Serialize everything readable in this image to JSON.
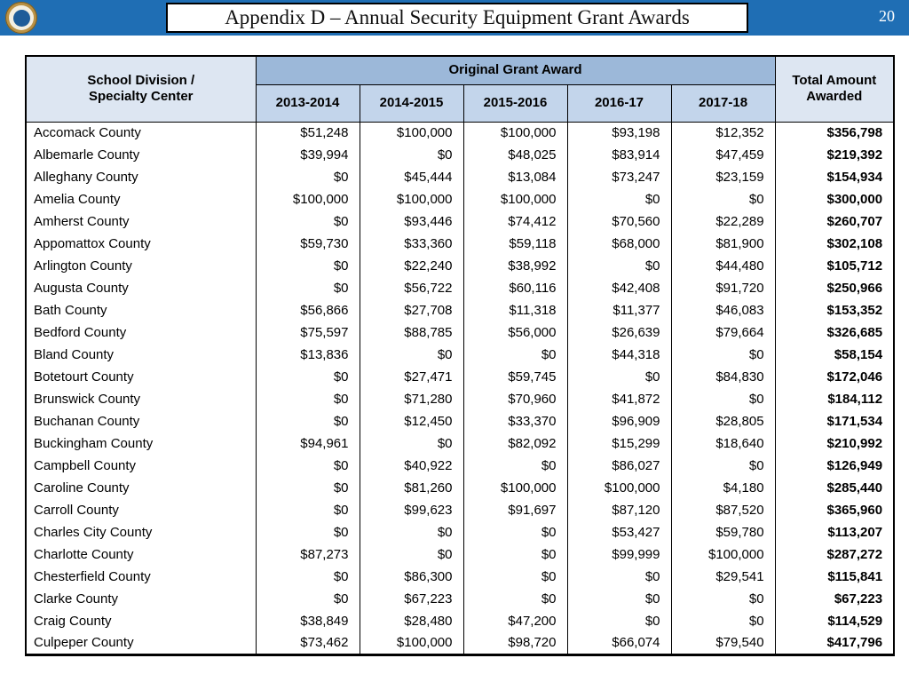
{
  "header": {
    "title": "Appendix D – Annual Security Equipment Grant Awards",
    "page_number": "20",
    "bar_color": "#1F6EB4",
    "logo": "doe-circular-seal"
  },
  "table": {
    "header": {
      "division": "School Division /\nSpecialty Center",
      "group": "Original Grant Award",
      "years": [
        "2013-2014",
        "2014-2015",
        "2015-2016",
        "2016-17",
        "2017-18"
      ],
      "total": "Total Amount\nAwarded"
    },
    "colors": {
      "group_header_bg": "#9CB8D9",
      "year_header_bg": "#C3D5EB",
      "side_header_bg": "#DDE6F2"
    },
    "rows": [
      {
        "name": "Accomack County",
        "values": [
          "$51,248",
          "$100,000",
          "$100,000",
          "$93,198",
          "$12,352"
        ],
        "total": "$356,798"
      },
      {
        "name": "Albemarle County",
        "values": [
          "$39,994",
          "$0",
          "$48,025",
          "$83,914",
          "$47,459"
        ],
        "total": "$219,392"
      },
      {
        "name": "Alleghany County",
        "values": [
          "$0",
          "$45,444",
          "$13,084",
          "$73,247",
          "$23,159"
        ],
        "total": "$154,934"
      },
      {
        "name": "Amelia County",
        "values": [
          "$100,000",
          "$100,000",
          "$100,000",
          "$0",
          "$0"
        ],
        "total": "$300,000"
      },
      {
        "name": "Amherst County",
        "values": [
          "$0",
          "$93,446",
          "$74,412",
          "$70,560",
          "$22,289"
        ],
        "total": "$260,707"
      },
      {
        "name": "Appomattox County",
        "values": [
          "$59,730",
          "$33,360",
          "$59,118",
          "$68,000",
          "$81,900"
        ],
        "total": "$302,108"
      },
      {
        "name": "Arlington County",
        "values": [
          "$0",
          "$22,240",
          "$38,992",
          "$0",
          "$44,480"
        ],
        "total": "$105,712"
      },
      {
        "name": "Augusta County",
        "values": [
          "$0",
          "$56,722",
          "$60,116",
          "$42,408",
          "$91,720"
        ],
        "total": "$250,966"
      },
      {
        "name": "Bath County",
        "values": [
          "$56,866",
          "$27,708",
          "$11,318",
          "$11,377",
          "$46,083"
        ],
        "total": "$153,352"
      },
      {
        "name": "Bedford County",
        "values": [
          "$75,597",
          "$88,785",
          "$56,000",
          "$26,639",
          "$79,664"
        ],
        "total": "$326,685"
      },
      {
        "name": "Bland County",
        "values": [
          "$13,836",
          "$0",
          "$0",
          "$44,318",
          "$0"
        ],
        "total": "$58,154"
      },
      {
        "name": "Botetourt County",
        "values": [
          "$0",
          "$27,471",
          "$59,745",
          "$0",
          "$84,830"
        ],
        "total": "$172,046"
      },
      {
        "name": "Brunswick County",
        "values": [
          "$0",
          "$71,280",
          "$70,960",
          "$41,872",
          "$0"
        ],
        "total": "$184,112"
      },
      {
        "name": "Buchanan County",
        "values": [
          "$0",
          "$12,450",
          "$33,370",
          "$96,909",
          "$28,805"
        ],
        "total": "$171,534"
      },
      {
        "name": "Buckingham County",
        "values": [
          "$94,961",
          "$0",
          "$82,092",
          "$15,299",
          "$18,640"
        ],
        "total": "$210,992"
      },
      {
        "name": "Campbell County",
        "values": [
          "$0",
          "$40,922",
          "$0",
          "$86,027",
          "$0"
        ],
        "total": "$126,949"
      },
      {
        "name": "Caroline County",
        "values": [
          "$0",
          "$81,260",
          "$100,000",
          "$100,000",
          "$4,180"
        ],
        "total": "$285,440"
      },
      {
        "name": "Carroll County",
        "values": [
          "$0",
          "$99,623",
          "$91,697",
          "$87,120",
          "$87,520"
        ],
        "total": "$365,960"
      },
      {
        "name": "Charles City County",
        "values": [
          "$0",
          "$0",
          "$0",
          "$53,427",
          "$59,780"
        ],
        "total": "$113,207"
      },
      {
        "name": "Charlotte County",
        "values": [
          "$87,273",
          "$0",
          "$0",
          "$99,999",
          "$100,000"
        ],
        "total": "$287,272"
      },
      {
        "name": "Chesterfield County",
        "values": [
          "$0",
          "$86,300",
          "$0",
          "$0",
          "$29,541"
        ],
        "total": "$115,841"
      },
      {
        "name": "Clarke County",
        "values": [
          "$0",
          "$67,223",
          "$0",
          "$0",
          "$0"
        ],
        "total": "$67,223"
      },
      {
        "name": "Craig County",
        "values": [
          "$38,849",
          "$28,480",
          "$47,200",
          "$0",
          "$0"
        ],
        "total": "$114,529"
      },
      {
        "name": "Culpeper County",
        "values": [
          "$73,462",
          "$100,000",
          "$98,720",
          "$66,074",
          "$79,540"
        ],
        "total": "$417,796"
      }
    ]
  }
}
